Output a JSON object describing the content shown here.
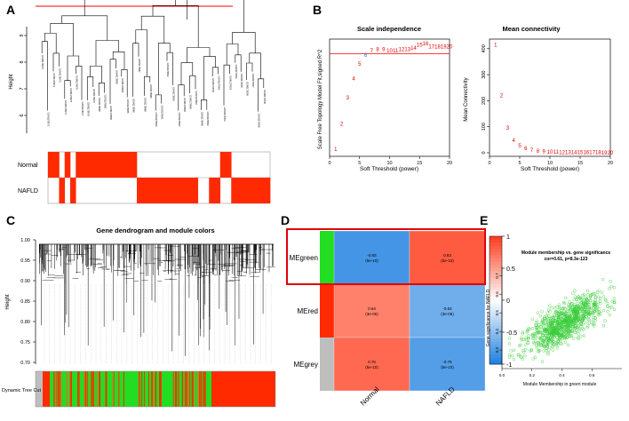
{
  "panel_letters": {
    "a": "A",
    "b": "B",
    "c": "C",
    "d": "D",
    "e": "E"
  },
  "panel_a": {
    "ylabel": "Height",
    "y_ticks": [
      "6",
      "7",
      "8",
      "9"
    ],
    "leaf_labels": [
      "GSM1178970",
      "GSM1178971",
      "GSM1178972",
      "GSM1178973",
      "GSM1178974",
      "GSM1178975",
      "GSM1178976",
      "GSM1178977",
      "GSM1178978",
      "GSM1178979",
      "GSM1178980",
      "GSM1178981",
      "GSM1178982",
      "GSM1178983",
      "GSM1178984",
      "GSM1178985",
      "GSM1178986",
      "GSM1178987",
      "GSM1178988",
      "GSM1178989",
      "GSM1178990",
      "GSM1178991",
      "GSM1178992",
      "GSM1178993",
      "GSM1178994",
      "GSM1178995",
      "GSM1178996",
      "GSM1178997",
      "GSM1178998",
      "GSM1178999",
      "GSM1179000",
      "GSM1179001",
      "GSM1179002",
      "GSM1179003",
      "GSM1179004",
      "GSM1179005",
      "GSM1179006",
      "GSM1179007",
      "GSM1179008",
      "GSM1179009"
    ],
    "trait_labels": [
      "Normal",
      "NAFLD"
    ],
    "normal_pattern": [
      1,
      1,
      0,
      1,
      0,
      1,
      1,
      1,
      1,
      1,
      1,
      1,
      1,
      1,
      1,
      1,
      0,
      0,
      0,
      0,
      0,
      0,
      0,
      0,
      0,
      0,
      0,
      0,
      0,
      0,
      0,
      1,
      1,
      0,
      0,
      0,
      0,
      0,
      0,
      0
    ],
    "nafld_pattern": [
      0,
      0,
      1,
      0,
      1,
      0,
      0,
      0,
      0,
      0,
      0,
      0,
      0,
      0,
      0,
      0,
      1,
      1,
      1,
      1,
      1,
      1,
      1,
      1,
      1,
      1,
      1,
      0,
      0,
      1,
      1,
      0,
      0,
      1,
      1,
      1,
      1,
      1,
      1,
      1
    ],
    "colors": {
      "trait": "#ff2a00",
      "cut_line": "#ff0000"
    }
  },
  "panel_b1": {
    "chart_data": {
      "type": "scatter",
      "title": "Scale independence",
      "xlabel": "Soft Threshold (power)",
      "ylabel": "Scale Free Topology Model Fit,signed R^2",
      "x": [
        1,
        2,
        3,
        4,
        5,
        6,
        7,
        8,
        9,
        10,
        11,
        12,
        13,
        14,
        15,
        16,
        17,
        18,
        19,
        20
      ],
      "y": [
        0.05,
        0.22,
        0.4,
        0.53,
        0.63,
        0.69,
        0.72,
        0.73,
        0.73,
        0.72,
        0.72,
        0.73,
        0.73,
        0.74,
        0.76,
        0.77,
        0.75,
        0.75,
        0.75,
        0.75
      ],
      "labels": [
        "1",
        "2",
        "3",
        "4",
        "5",
        "6",
        "7",
        "8",
        "9",
        "10",
        "11",
        "12",
        "13",
        "14",
        "15",
        "16",
        "17",
        "18",
        "19",
        "20"
      ],
      "xlim": [
        0,
        20
      ],
      "x_ticks": [
        "0",
        "5",
        "10",
        "15",
        "20"
      ],
      "cutoff": 0.7
    }
  },
  "panel_b2": {
    "chart_data": {
      "type": "scatter",
      "title": "Mean connectivity",
      "xlabel": "Soft Threshold (power)",
      "ylabel": "Mean Connectivity",
      "x": [
        1,
        2,
        3,
        4,
        5,
        6,
        7,
        8,
        9,
        10,
        11,
        12,
        13,
        14,
        15,
        16,
        17,
        18,
        19,
        20
      ],
      "y": [
        415,
        220,
        95,
        48,
        27,
        17,
        11,
        7,
        5,
        4,
        3,
        2,
        2,
        1,
        1,
        1,
        1,
        1,
        0,
        0
      ],
      "labels": [
        "1",
        "2",
        "3",
        "4",
        "5",
        "6",
        "7",
        "8",
        "9",
        "10",
        "11",
        "12",
        "13",
        "14",
        "15",
        "16",
        "17",
        "18",
        "19",
        "20"
      ],
      "xlim": [
        0,
        20
      ],
      "ylim": [
        0,
        430
      ],
      "x_ticks": [
        "0",
        "5",
        "10",
        "15",
        "20"
      ],
      "y_ticks": [
        "0",
        "100",
        "200",
        "300",
        "400"
      ]
    }
  },
  "panel_c": {
    "title": "Gene dendrogram and module colors",
    "ylabel": "Height",
    "y_ticks": [
      "0.70",
      "0.75",
      "0.80",
      "0.85",
      "0.90",
      "0.95",
      "1.00"
    ],
    "color_bar_label": "Dynamic Tree Cut",
    "module_colors": {
      "green": "#22dd22",
      "red": "#ff2a00",
      "grey": "#bebebe"
    }
  },
  "panel_d": {
    "chart_data": {
      "type": "heatmap",
      "rows": [
        "MEgreen",
        "MEred",
        "MEgrey"
      ],
      "row_colors": [
        "#22dd22",
        "#ff2a00",
        "#bebebe"
      ],
      "columns": [
        "Normal",
        "NAFLD"
      ],
      "cells": [
        [
          {
            "value": -0.83,
            "text": "-0.83",
            "pvalue": "(5e-10)"
          },
          {
            "value": 0.83,
            "text": "0.83",
            "pvalue": "(5e-10)"
          }
        ],
        [
          {
            "value": 0.64,
            "text": "0.64",
            "pvalue": "(3e-06)"
          },
          {
            "value": -0.64,
            "text": "-0.64",
            "pvalue": "(3e-06)"
          }
        ],
        [
          {
            "value": 0.76,
            "text": "0.76",
            "pvalue": "(5e-10)"
          },
          {
            "value": -0.76,
            "text": "-0.76",
            "pvalue": "(5e-10)"
          }
        ]
      ],
      "legend_ticks": [
        "1",
        "0.5",
        "0",
        "-0.5",
        "-1"
      ],
      "scale_colors": {
        "positive": "#ff3a1a",
        "neutral": "#ffffff",
        "negative": "#1e7fe0"
      },
      "highlight_row": "MEgreen"
    }
  },
  "panel_e": {
    "chart_data": {
      "type": "scatter",
      "title": "Module membership vs. gene significance",
      "subtitle": "cor=0.61, p=8.3e-123",
      "xlabel": "Module Membership in green module",
      "ylabel": "Gene significance for NAFLD",
      "xlim": [
        0,
        0.8
      ],
      "ylim": [
        0.2,
        0.75
      ],
      "x_ticks": [
        "0.0",
        "0.2",
        "0.4",
        "0.6"
      ],
      "y_ticks": [
        "0.3",
        "0.4",
        "0.5",
        "0.6",
        "0.7"
      ],
      "point_count": 900,
      "correlation": 0.61,
      "point_color": "#33cc33"
    }
  }
}
